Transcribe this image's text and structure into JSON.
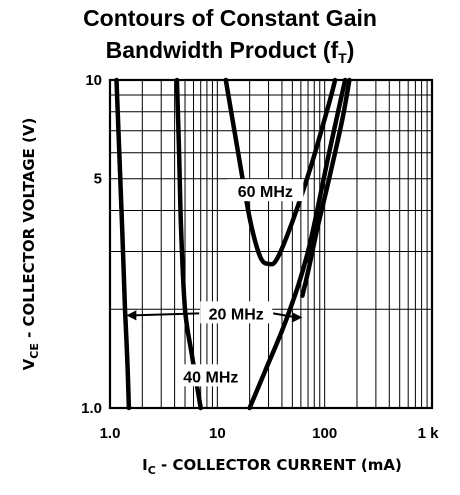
{
  "title_line1": "Contours of Constant Gain",
  "title_line2_main": "Bandwidth Product (f",
  "title_line2_sub": "T",
  "title_line2_end": ")",
  "chart_data": {
    "type": "line",
    "title": "Contours of Constant Gain Bandwidth Product (fT)",
    "xlabel": "IC - COLLECTOR CURRENT (mA)",
    "ylabel": "VCE - COLLECTOR VOLTAGE (V)",
    "x_scale": "log",
    "y_scale": "log",
    "xlim": [
      1,
      1000
    ],
    "ylim": [
      1,
      10
    ],
    "x_ticks": [
      "1.0",
      "10",
      "100",
      "1 k"
    ],
    "y_ticks": [
      "1.0",
      "5",
      "10"
    ],
    "grid": true,
    "annotations": [
      "20 MHz",
      "40 MHz",
      "60 MHz"
    ],
    "series": [
      {
        "name": "20 MHz",
        "points": [
          [
            1.15,
            10
          ],
          [
            1.22,
            6
          ],
          [
            1.3,
            3.5
          ],
          [
            1.38,
            2
          ],
          [
            1.45,
            1.4
          ],
          [
            1.5,
            1.0
          ]
        ]
      },
      {
        "name": "20 MHz",
        "points": [
          [
            62,
            2.2
          ],
          [
            70,
            2.6
          ],
          [
            85,
            3.5
          ],
          [
            110,
            5
          ],
          [
            145,
            7.5
          ],
          [
            170,
            10
          ]
        ]
      },
      {
        "name": "40 MHz",
        "points": [
          [
            4.2,
            10
          ],
          [
            4.4,
            6
          ],
          [
            4.6,
            3.5
          ],
          [
            5,
            2
          ],
          [
            5.8,
            1.45
          ],
          [
            7,
            1.0
          ]
        ]
      },
      {
        "name": "40 MHz",
        "points": [
          [
            20,
            1.0
          ],
          [
            28,
            1.3
          ],
          [
            45,
            1.9
          ],
          [
            70,
            3
          ],
          [
            110,
            6
          ],
          [
            155,
            10
          ]
        ]
      },
      {
        "name": "60 MHz",
        "points": [
          [
            12,
            10
          ],
          [
            15,
            6.5
          ],
          [
            20,
            3.8
          ],
          [
            25,
            2.9
          ],
          [
            30,
            2.75
          ],
          [
            36,
            2.85
          ],
          [
            50,
            3.7
          ],
          [
            75,
            5.5
          ],
          [
            110,
            8.5
          ],
          [
            125,
            10
          ]
        ]
      }
    ]
  },
  "axis": {
    "x_main": "I",
    "x_sub": "C",
    "x_rest": " - COLLECTOR CURRENT (mA)",
    "y_main": "V",
    "y_sub": "CE",
    "y_rest": " - COLLECTOR VOLTAGE (V)"
  }
}
